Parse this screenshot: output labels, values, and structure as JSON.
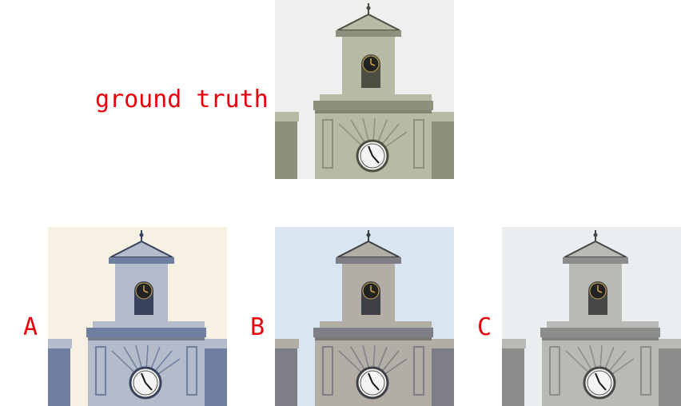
{
  "labels": {
    "ground_truth": "ground truth",
    "a": "A",
    "b": "B",
    "c": "C"
  },
  "panels": [
    {
      "id": "ground-truth",
      "sky": "#eef0ee",
      "tower": "#b9baa5",
      "shade": "#8e8f7c",
      "dark": "#4d4e42"
    },
    {
      "id": "a",
      "sky": "#f6f1e3",
      "tower": "#b4bccb",
      "shade": "#6f7fa0",
      "dark": "#38425a"
    },
    {
      "id": "b",
      "sky": "#d9e6f2",
      "tower": "#b2aea6",
      "shade": "#7e7e86",
      "dark": "#3f3f46"
    },
    {
      "id": "c",
      "sky": "#eaeef0",
      "tower": "#b9b9b5",
      "shade": "#8c8c8a",
      "dark": "#484848"
    }
  ]
}
